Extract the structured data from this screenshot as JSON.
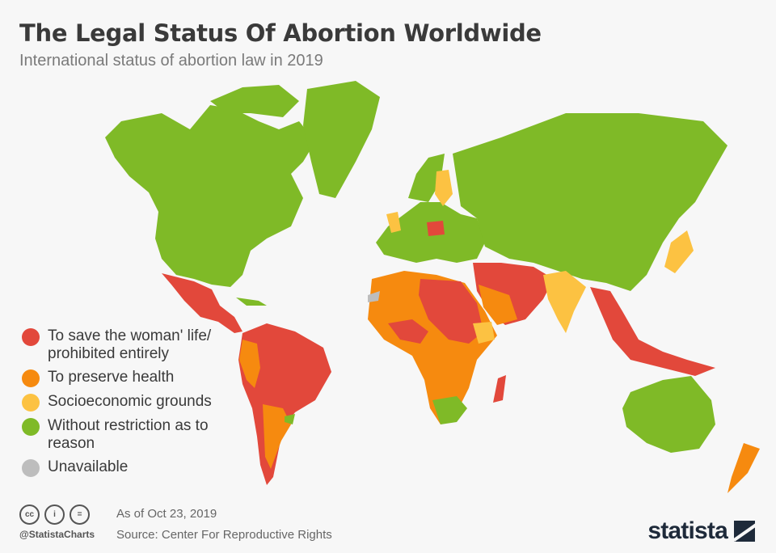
{
  "header": {
    "title": "The Legal Status Of Abortion Worldwide",
    "subtitle": "International status of abortion law in 2019"
  },
  "legend": {
    "items": [
      {
        "label": "To save the woman' life/ prohibited entirely",
        "color": "#e2483b"
      },
      {
        "label": "To preserve health",
        "color": "#f68a0f"
      },
      {
        "label": "Socioeconomic grounds",
        "color": "#fcc242"
      },
      {
        "label": "Without restriction as to reason",
        "color": "#7fba27"
      },
      {
        "label": "Unavailable",
        "color": "#bdbdbd"
      }
    ]
  },
  "footer": {
    "license_icons": [
      "creative-commons-icon",
      "attribution-icon",
      "no-derivatives-icon"
    ],
    "license_glyphs": [
      "cc",
      "i",
      "="
    ],
    "handle": "@StatistaCharts",
    "as_of": "As of Oct 23, 2019",
    "source": "Source: Center For Reproductive Rights",
    "brand": "statista"
  }
}
